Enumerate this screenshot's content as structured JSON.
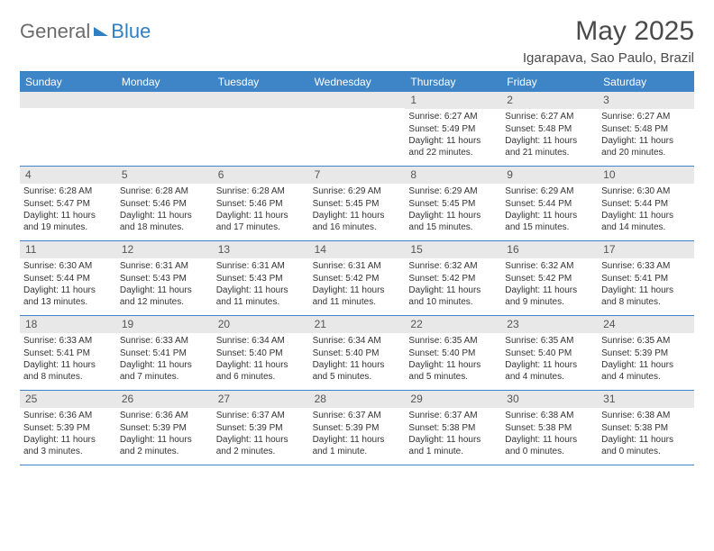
{
  "brand": {
    "part1": "General",
    "part2": "Blue"
  },
  "title": "May 2025",
  "location": "Igarapava, Sao Paulo, Brazil",
  "colors": {
    "header_bg": "#3d85c6",
    "header_text": "#ffffff",
    "daynum_bg": "#e8e8e8",
    "border": "#3d85c6",
    "text": "#333333",
    "title": "#4a4a4a",
    "brand_gray": "#6b6b6b",
    "brand_blue": "#2f7fc1"
  },
  "day_names": [
    "Sunday",
    "Monday",
    "Tuesday",
    "Wednesday",
    "Thursday",
    "Friday",
    "Saturday"
  ],
  "weeks": [
    [
      {
        "n": "",
        "lines": []
      },
      {
        "n": "",
        "lines": []
      },
      {
        "n": "",
        "lines": []
      },
      {
        "n": "",
        "lines": []
      },
      {
        "n": "1",
        "lines": [
          "Sunrise: 6:27 AM",
          "Sunset: 5:49 PM",
          "Daylight: 11 hours and 22 minutes."
        ]
      },
      {
        "n": "2",
        "lines": [
          "Sunrise: 6:27 AM",
          "Sunset: 5:48 PM",
          "Daylight: 11 hours and 21 minutes."
        ]
      },
      {
        "n": "3",
        "lines": [
          "Sunrise: 6:27 AM",
          "Sunset: 5:48 PM",
          "Daylight: 11 hours and 20 minutes."
        ]
      }
    ],
    [
      {
        "n": "4",
        "lines": [
          "Sunrise: 6:28 AM",
          "Sunset: 5:47 PM",
          "Daylight: 11 hours and 19 minutes."
        ]
      },
      {
        "n": "5",
        "lines": [
          "Sunrise: 6:28 AM",
          "Sunset: 5:46 PM",
          "Daylight: 11 hours and 18 minutes."
        ]
      },
      {
        "n": "6",
        "lines": [
          "Sunrise: 6:28 AM",
          "Sunset: 5:46 PM",
          "Daylight: 11 hours and 17 minutes."
        ]
      },
      {
        "n": "7",
        "lines": [
          "Sunrise: 6:29 AM",
          "Sunset: 5:45 PM",
          "Daylight: 11 hours and 16 minutes."
        ]
      },
      {
        "n": "8",
        "lines": [
          "Sunrise: 6:29 AM",
          "Sunset: 5:45 PM",
          "Daylight: 11 hours and 15 minutes."
        ]
      },
      {
        "n": "9",
        "lines": [
          "Sunrise: 6:29 AM",
          "Sunset: 5:44 PM",
          "Daylight: 11 hours and 15 minutes."
        ]
      },
      {
        "n": "10",
        "lines": [
          "Sunrise: 6:30 AM",
          "Sunset: 5:44 PM",
          "Daylight: 11 hours and 14 minutes."
        ]
      }
    ],
    [
      {
        "n": "11",
        "lines": [
          "Sunrise: 6:30 AM",
          "Sunset: 5:44 PM",
          "Daylight: 11 hours and 13 minutes."
        ]
      },
      {
        "n": "12",
        "lines": [
          "Sunrise: 6:31 AM",
          "Sunset: 5:43 PM",
          "Daylight: 11 hours and 12 minutes."
        ]
      },
      {
        "n": "13",
        "lines": [
          "Sunrise: 6:31 AM",
          "Sunset: 5:43 PM",
          "Daylight: 11 hours and 11 minutes."
        ]
      },
      {
        "n": "14",
        "lines": [
          "Sunrise: 6:31 AM",
          "Sunset: 5:42 PM",
          "Daylight: 11 hours and 11 minutes."
        ]
      },
      {
        "n": "15",
        "lines": [
          "Sunrise: 6:32 AM",
          "Sunset: 5:42 PM",
          "Daylight: 11 hours and 10 minutes."
        ]
      },
      {
        "n": "16",
        "lines": [
          "Sunrise: 6:32 AM",
          "Sunset: 5:42 PM",
          "Daylight: 11 hours and 9 minutes."
        ]
      },
      {
        "n": "17",
        "lines": [
          "Sunrise: 6:33 AM",
          "Sunset: 5:41 PM",
          "Daylight: 11 hours and 8 minutes."
        ]
      }
    ],
    [
      {
        "n": "18",
        "lines": [
          "Sunrise: 6:33 AM",
          "Sunset: 5:41 PM",
          "Daylight: 11 hours and 8 minutes."
        ]
      },
      {
        "n": "19",
        "lines": [
          "Sunrise: 6:33 AM",
          "Sunset: 5:41 PM",
          "Daylight: 11 hours and 7 minutes."
        ]
      },
      {
        "n": "20",
        "lines": [
          "Sunrise: 6:34 AM",
          "Sunset: 5:40 PM",
          "Daylight: 11 hours and 6 minutes."
        ]
      },
      {
        "n": "21",
        "lines": [
          "Sunrise: 6:34 AM",
          "Sunset: 5:40 PM",
          "Daylight: 11 hours and 5 minutes."
        ]
      },
      {
        "n": "22",
        "lines": [
          "Sunrise: 6:35 AM",
          "Sunset: 5:40 PM",
          "Daylight: 11 hours and 5 minutes."
        ]
      },
      {
        "n": "23",
        "lines": [
          "Sunrise: 6:35 AM",
          "Sunset: 5:40 PM",
          "Daylight: 11 hours and 4 minutes."
        ]
      },
      {
        "n": "24",
        "lines": [
          "Sunrise: 6:35 AM",
          "Sunset: 5:39 PM",
          "Daylight: 11 hours and 4 minutes."
        ]
      }
    ],
    [
      {
        "n": "25",
        "lines": [
          "Sunrise: 6:36 AM",
          "Sunset: 5:39 PM",
          "Daylight: 11 hours and 3 minutes."
        ]
      },
      {
        "n": "26",
        "lines": [
          "Sunrise: 6:36 AM",
          "Sunset: 5:39 PM",
          "Daylight: 11 hours and 2 minutes."
        ]
      },
      {
        "n": "27",
        "lines": [
          "Sunrise: 6:37 AM",
          "Sunset: 5:39 PM",
          "Daylight: 11 hours and 2 minutes."
        ]
      },
      {
        "n": "28",
        "lines": [
          "Sunrise: 6:37 AM",
          "Sunset: 5:39 PM",
          "Daylight: 11 hours and 1 minute."
        ]
      },
      {
        "n": "29",
        "lines": [
          "Sunrise: 6:37 AM",
          "Sunset: 5:38 PM",
          "Daylight: 11 hours and 1 minute."
        ]
      },
      {
        "n": "30",
        "lines": [
          "Sunrise: 6:38 AM",
          "Sunset: 5:38 PM",
          "Daylight: 11 hours and 0 minutes."
        ]
      },
      {
        "n": "31",
        "lines": [
          "Sunrise: 6:38 AM",
          "Sunset: 5:38 PM",
          "Daylight: 11 hours and 0 minutes."
        ]
      }
    ]
  ]
}
